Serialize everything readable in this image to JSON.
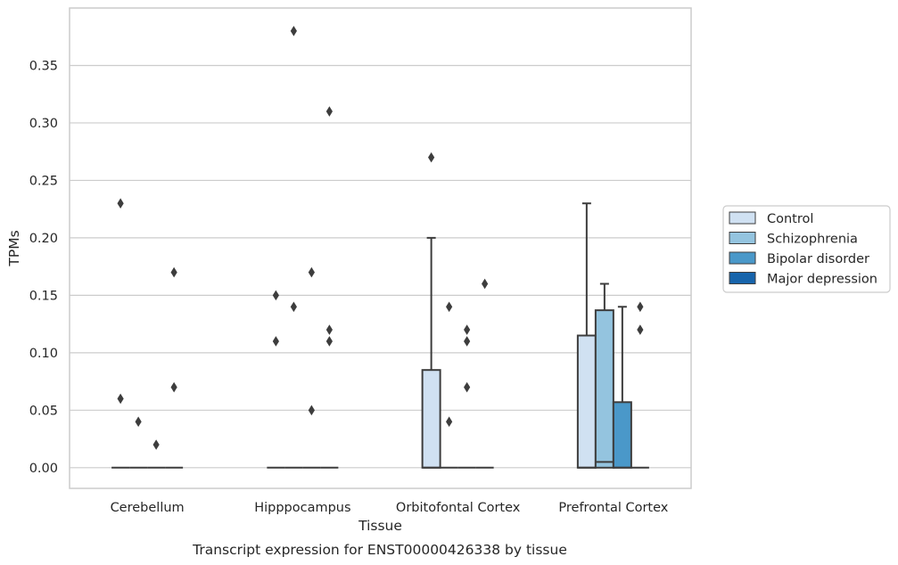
{
  "chart_data": {
    "type": "box",
    "title": "Transcript expression for ENST00000426338 by tissue",
    "xlabel": "Tissue",
    "ylabel": "TPMs",
    "ylim": [
      -0.018,
      0.4
    ],
    "yticks": [
      0.0,
      0.05,
      0.1,
      0.15,
      0.2,
      0.25,
      0.3,
      0.35
    ],
    "ytick_labels": [
      "0.00",
      "0.05",
      "0.10",
      "0.15",
      "0.20",
      "0.25",
      "0.30",
      "0.35"
    ],
    "grid": true,
    "legend_position": "right",
    "categories": [
      "Cerebellum",
      "Hipppocampus",
      "Orbitofontal Cortex",
      "Prefrontal Cortex"
    ],
    "series": [
      {
        "name": "Control",
        "color": "#d0e1f2",
        "boxes": [
          {
            "category": "Cerebellum",
            "q1": 0,
            "median": 0,
            "q3": 0,
            "whisker_low": 0,
            "whisker_high": 0,
            "outliers": [
              0.23,
              0.06
            ]
          },
          {
            "category": "Hipppocampus",
            "q1": 0,
            "median": 0,
            "q3": 0,
            "whisker_low": 0,
            "whisker_high": 0,
            "outliers": [
              0.15,
              0.11
            ]
          },
          {
            "category": "Orbitofontal Cortex",
            "q1": 0,
            "median": 0,
            "q3": 0.085,
            "whisker_low": 0,
            "whisker_high": 0.2,
            "outliers": [
              0.27
            ]
          },
          {
            "category": "Prefrontal Cortex",
            "q1": 0,
            "median": 0,
            "q3": 0.115,
            "whisker_low": 0,
            "whisker_high": 0.23,
            "outliers": []
          }
        ]
      },
      {
        "name": "Schizophrenia",
        "color": "#94c4df",
        "boxes": [
          {
            "category": "Cerebellum",
            "q1": 0,
            "median": 0,
            "q3": 0,
            "whisker_low": 0,
            "whisker_high": 0,
            "outliers": [
              0.04
            ]
          },
          {
            "category": "Hipppocampus",
            "q1": 0,
            "median": 0,
            "q3": 0,
            "whisker_low": 0,
            "whisker_high": 0,
            "outliers": [
              0.38,
              0.14
            ]
          },
          {
            "category": "Orbitofontal Cortex",
            "q1": 0,
            "median": 0,
            "q3": 0,
            "whisker_low": 0,
            "whisker_high": 0,
            "outliers": [
              0.14,
              0.04
            ]
          },
          {
            "category": "Prefrontal Cortex",
            "q1": 0,
            "median": 0.005,
            "q3": 0.137,
            "whisker_low": 0,
            "whisker_high": 0.16,
            "outliers": []
          }
        ]
      },
      {
        "name": "Bipolar disorder",
        "color": "#4a98c9",
        "boxes": [
          {
            "category": "Cerebellum",
            "q1": 0,
            "median": 0,
            "q3": 0,
            "whisker_low": 0,
            "whisker_high": 0,
            "outliers": [
              0.02
            ]
          },
          {
            "category": "Hipppocampus",
            "q1": 0,
            "median": 0,
            "q3": 0,
            "whisker_low": 0,
            "whisker_high": 0,
            "outliers": [
              0.17,
              0.05
            ]
          },
          {
            "category": "Orbitofontal Cortex",
            "q1": 0,
            "median": 0,
            "q3": 0,
            "whisker_low": 0,
            "whisker_high": 0,
            "outliers": [
              0.12,
              0.11,
              0.07
            ]
          },
          {
            "category": "Prefrontal Cortex",
            "q1": 0,
            "median": 0,
            "q3": 0.057,
            "whisker_low": 0,
            "whisker_high": 0.14,
            "outliers": []
          }
        ]
      },
      {
        "name": "Major depression",
        "color": "#1764ab",
        "boxes": [
          {
            "category": "Cerebellum",
            "q1": 0,
            "median": 0,
            "q3": 0,
            "whisker_low": 0,
            "whisker_high": 0,
            "outliers": [
              0.17,
              0.07
            ]
          },
          {
            "category": "Hipppocampus",
            "q1": 0,
            "median": 0,
            "q3": 0,
            "whisker_low": 0,
            "whisker_high": 0,
            "outliers": [
              0.31,
              0.12,
              0.11
            ]
          },
          {
            "category": "Orbitofontal Cortex",
            "q1": 0,
            "median": 0,
            "q3": 0,
            "whisker_low": 0,
            "whisker_high": 0,
            "outliers": [
              0.16
            ]
          },
          {
            "category": "Prefrontal Cortex",
            "q1": 0,
            "median": 0,
            "q3": 0,
            "whisker_low": 0,
            "whisker_high": 0,
            "outliers": [
              0.14,
              0.12
            ]
          }
        ]
      }
    ]
  }
}
